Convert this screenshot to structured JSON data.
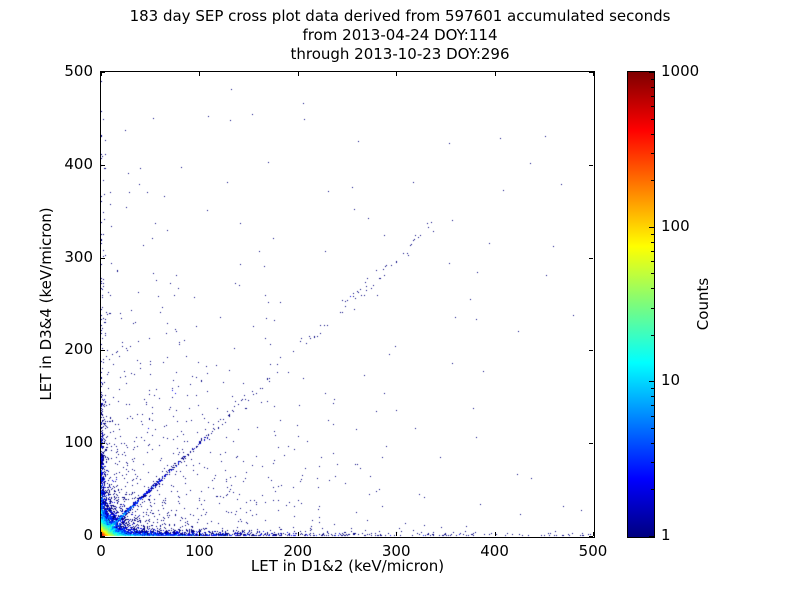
{
  "figure": {
    "title_lines": [
      "183 day SEP cross plot data derived from 597601 accumulated seconds",
      "from 2013-04-24 DOY:114",
      "through 2013-10-23 DOY:296"
    ]
  },
  "chart_data": {
    "type": "scatter",
    "title": "183 day SEP cross plot data derived from 597601 accumulated seconds",
    "subtitle_from": "from 2013-04-24 DOY:114",
    "subtitle_through": "through 2013-10-23 DOY:296",
    "xlabel": "LET in D1&2 (keV/micron)",
    "ylabel": "LET in D3&4 (keV/micron)",
    "xlim": [
      0,
      500
    ],
    "ylim": [
      0,
      500
    ],
    "xticks": [
      0,
      100,
      200,
      300,
      400,
      500
    ],
    "yticks": [
      0,
      100,
      200,
      300,
      400,
      500
    ],
    "grid": false,
    "legend": "none",
    "colorbar": {
      "label": "Counts",
      "scale": "log",
      "min": 1,
      "max": 1000,
      "ticks": [
        1,
        10,
        100,
        1000
      ],
      "colormap": "jet",
      "stops": [
        {
          "p": 0,
          "c": "#00007f"
        },
        {
          "p": 0.125,
          "c": "#0000ff"
        },
        {
          "p": 0.375,
          "c": "#00ffff"
        },
        {
          "p": 0.5,
          "c": "#7cfc7c"
        },
        {
          "p": 0.625,
          "c": "#ffff00"
        },
        {
          "p": 0.875,
          "c": "#ff0000"
        },
        {
          "p": 1,
          "c": "#7f0000"
        }
      ]
    },
    "description": "2D histogram-style scatter of coincident LET in detectors D1&2 vs D3&4; hot (high count) cluster at origin, cyan diagonal band y≈x out to ~130 keV/micron with sparse diagonal continuation to ~335, count bands hugging both axes, and isolated single-count dark-blue events scattered across the plane.",
    "distribution": {
      "seed": 1337,
      "groups": [
        {
          "type": "exp2d",
          "n": 6000,
          "mean_x": 6,
          "mean_y": 6,
          "max": 70
        },
        {
          "type": "exp2d",
          "n": 3000,
          "mean_x": 2,
          "mean_y": 2,
          "max": 30
        },
        {
          "type": "exp2d",
          "n": 1200,
          "mean_x": 15,
          "mean_y": 15,
          "max": 120
        },
        {
          "type": "diag",
          "n": 1000,
          "mean_t": 28,
          "max_t": 130,
          "jitter": 1.2
        },
        {
          "type": "diag_uniform",
          "n": 90,
          "min_t": 90,
          "max_t": 335,
          "jitter": 5
        },
        {
          "type": "axis_x",
          "n": 1800,
          "mean_long": 65,
          "mean_short": 2
        },
        {
          "type": "axis_x_uniform",
          "n": 150,
          "min": 0,
          "max": 500,
          "mean_short": 1.5
        },
        {
          "type": "axis_y",
          "n": 800,
          "mean_long": 50,
          "mean_short": 2
        },
        {
          "type": "axis_y_uniform",
          "n": 60,
          "min": 0,
          "max": 490,
          "mean_short": 1.5
        },
        {
          "type": "sparse",
          "n": 700,
          "mean_x": 90,
          "mean_y": 90
        },
        {
          "type": "uniform",
          "n": 70,
          "min": 0,
          "max": 470
        }
      ]
    }
  }
}
